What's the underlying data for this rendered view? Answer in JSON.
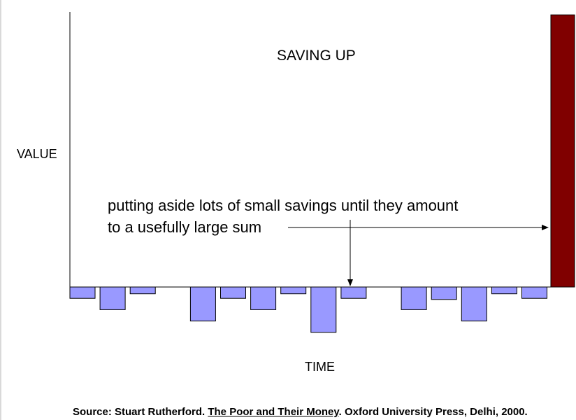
{
  "title": "SAVING UP",
  "y_axis_label": "VALUE",
  "x_axis_label": "TIME",
  "annotation": {
    "line1": "putting aside lots of small savings until they amount",
    "line2": "to a usefully large sum"
  },
  "source": {
    "prefix": "Source:  Stuart Rutherford.  ",
    "book": "The Poor and Their Money",
    "suffix": ".  Oxford University Press, Delhi, 2000."
  },
  "colors": {
    "deposit_fill": "#9999ff",
    "lump_sum_fill": "#800000",
    "outline": "#000000"
  },
  "chart_data": {
    "type": "bar",
    "deposits": [
      1,
      2,
      0.6,
      3,
      1,
      2,
      0.6,
      4,
      1,
      2,
      1.1,
      3,
      0.6,
      1
    ],
    "deposit_groups": [
      3,
      6,
      5
    ],
    "lump_sum": 24,
    "title": "SAVING UP",
    "xlabel": "TIME",
    "ylabel": "VALUE"
  }
}
